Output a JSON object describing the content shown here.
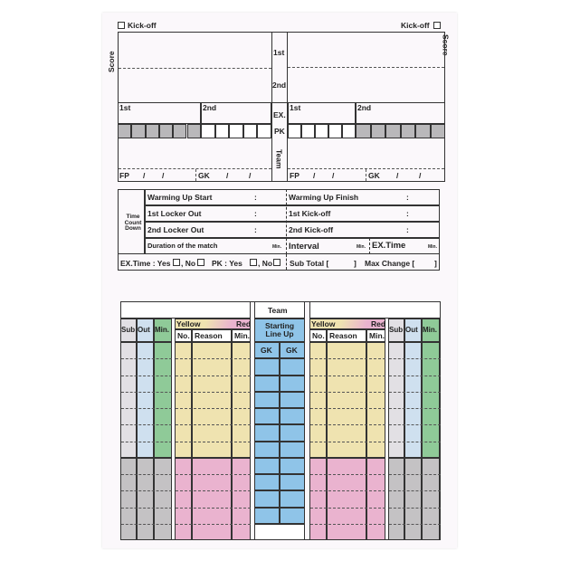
{
  "score_section": {
    "kickoff_label": "Kick-off",
    "score_label": "Score",
    "center_labels": [
      "1st",
      "2nd",
      "EX.",
      "PK",
      "Team"
    ],
    "half_labels": [
      "1st",
      "2nd"
    ],
    "fp_label": "FP",
    "gk_label": "GK",
    "slash": "/"
  },
  "time_section": {
    "side_label": "Time Count Down",
    "rows": [
      {
        "left": "Warming Up Start",
        "right": "Warming Up Finish"
      },
      {
        "left": "1st Locker Out",
        "right": "1st Kick-off"
      },
      {
        "left": "2nd Locker Out",
        "right": "2nd Kick-off"
      }
    ],
    "colon": ":",
    "duration_label": "Duration of the match",
    "interval_label": "Interval",
    "extime_label": "EX.Time",
    "min_label": "Min.",
    "bottom": {
      "extime": "EX.Time : Yes",
      "pk": "PK :  Yes",
      "no": ", No",
      "sub_total": "Sub Total  [",
      "max_change": "Max Change  [",
      "close": "]"
    }
  },
  "lineup_table": {
    "team_label": "Team",
    "starting_label": "Starting Line Up",
    "gk_label": "GK",
    "yellow_label": "Yellow",
    "red_label": "Red",
    "card_headers": [
      "No.",
      "Reason",
      "Min."
    ],
    "sub_headers": [
      "Sub",
      "Out",
      "Min."
    ]
  },
  "colors": {
    "yellow": "#efe3b0",
    "pink": "#eab3cf",
    "grey": "#c4c2c4",
    "light_grey": "#e2e0e4",
    "light_blue": "#cfe0ef",
    "green": "#8fca98",
    "blue": "#8fc4e8"
  }
}
